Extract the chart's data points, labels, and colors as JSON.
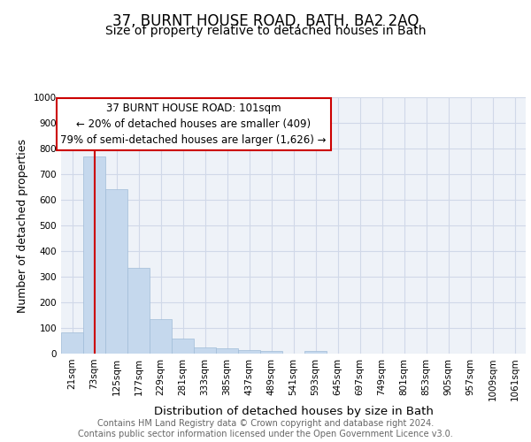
{
  "title": "37, BURNT HOUSE ROAD, BATH, BA2 2AQ",
  "subtitle": "Size of property relative to detached houses in Bath",
  "xlabel": "Distribution of detached houses by size in Bath",
  "ylabel": "Number of detached properties",
  "bar_values": [
    83,
    770,
    643,
    335,
    135,
    60,
    25,
    20,
    15,
    10,
    0,
    10,
    0,
    0,
    0,
    0,
    0,
    0,
    0,
    0,
    0
  ],
  "categories": [
    "21sqm",
    "73sqm",
    "125sqm",
    "177sqm",
    "229sqm",
    "281sqm",
    "333sqm",
    "385sqm",
    "437sqm",
    "489sqm",
    "541sqm",
    "593sqm",
    "645sqm",
    "697sqm",
    "749sqm",
    "801sqm",
    "853sqm",
    "905sqm",
    "957sqm",
    "1009sqm",
    "1061sqm"
  ],
  "bar_color": "#c5d8ed",
  "bar_edgecolor": "#a0bcd8",
  "vline_x": 1,
  "vline_color": "#cc0000",
  "annotation_text": "37 BURNT HOUSE ROAD: 101sqm\n← 20% of detached houses are smaller (409)\n79% of semi-detached houses are larger (1,626) →",
  "annotation_box_color": "#ffffff",
  "annotation_box_edgecolor": "#cc0000",
  "ylim": [
    0,
    1000
  ],
  "yticks": [
    0,
    100,
    200,
    300,
    400,
    500,
    600,
    700,
    800,
    900,
    1000
  ],
  "grid_color": "#d0d8e8",
  "background_color": "#eef2f8",
  "footer_text": "Contains HM Land Registry data © Crown copyright and database right 2024.\nContains public sector information licensed under the Open Government Licence v3.0.",
  "title_fontsize": 12,
  "subtitle_fontsize": 10,
  "xlabel_fontsize": 9.5,
  "ylabel_fontsize": 9,
  "annotation_fontsize": 8.5,
  "footer_fontsize": 7,
  "tick_fontsize": 7.5
}
